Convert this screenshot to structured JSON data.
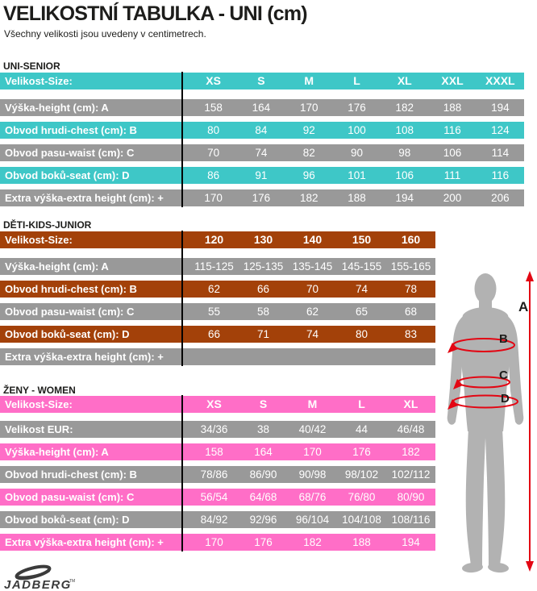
{
  "page": {
    "title": "VELIKOSTNÍ TABULKA - UNI (cm)",
    "subtitle": "Všechny velikosti jsou uvedeny v centimetrech."
  },
  "colors": {
    "senior_accent": "#3EC7C7",
    "kids_accent": "#A34109",
    "women_accent": "#FF6EC7",
    "row_gray": "#999999",
    "divider_black": "#000000",
    "figure_gray": "#B2B2B2",
    "measure_red": "#E30613"
  },
  "tables": [
    {
      "id": "uni-senior",
      "section_label": "UNI-SENIOR",
      "accent": "#3EC7C7",
      "header": {
        "label": "Velikost-Size:",
        "values": [
          "XS",
          "S",
          "M",
          "L",
          "XL",
          "XXL",
          "XXXL"
        ]
      },
      "rows": [
        {
          "label": "Výška-height (cm): A",
          "values": [
            "158",
            "164",
            "170",
            "176",
            "182",
            "188",
            "194"
          ]
        },
        {
          "label": "Obvod hrudi-chest (cm): B",
          "values": [
            "80",
            "84",
            "92",
            "100",
            "108",
            "116",
            "124"
          ]
        },
        {
          "label": "Obvod pasu-waist (cm): C",
          "values": [
            "70",
            "74",
            "82",
            "90",
            "98",
            "106",
            "114"
          ]
        },
        {
          "label": "Obvod boků-seat (cm): D",
          "values": [
            "86",
            "91",
            "96",
            "101",
            "106",
            "111",
            "116"
          ]
        },
        {
          "label": "Extra výška-extra height (cm): +",
          "values": [
            "170",
            "176",
            "182",
            "188",
            "194",
            "200",
            "206"
          ]
        }
      ]
    },
    {
      "id": "deti-kids-junior",
      "section_label": "DĚTI-KIDS-JUNIOR",
      "accent": "#A34109",
      "header": {
        "label": "Velikost-Size:",
        "values": [
          "120",
          "130",
          "140",
          "150",
          "160"
        ]
      },
      "rows": [
        {
          "label": "Výška-height (cm): A",
          "values": [
            "115-125",
            "125-135",
            "135-145",
            "145-155",
            "155-165"
          ]
        },
        {
          "label": "Obvod hrudi-chest (cm): B",
          "values": [
            "62",
            "66",
            "70",
            "74",
            "78"
          ]
        },
        {
          "label": "Obvod pasu-waist (cm): C",
          "values": [
            "55",
            "58",
            "62",
            "65",
            "68"
          ]
        },
        {
          "label": "Obvod boků-seat (cm): D",
          "values": [
            "66",
            "71",
            "74",
            "80",
            "83"
          ]
        },
        {
          "label": "Extra výška-extra height (cm): +",
          "values": [
            "",
            "",
            "",
            "",
            ""
          ]
        }
      ]
    },
    {
      "id": "zeny-women",
      "section_label": "ŽENY - WOMEN",
      "accent": "#FF6EC7",
      "header": {
        "label": "Velikost-Size:",
        "values": [
          "XS",
          "S",
          "M",
          "L",
          "XL"
        ]
      },
      "rows": [
        {
          "label": "Velikost EUR:",
          "values": [
            "34/36",
            "38",
            "40/42",
            "44",
            "46/48"
          ]
        },
        {
          "label": "Výška-height (cm): A",
          "values": [
            "158",
            "164",
            "170",
            "176",
            "182"
          ]
        },
        {
          "label": "Obvod hrudi-chest (cm): B",
          "values": [
            "78/86",
            "86/90",
            "90/98",
            "98/102",
            "102/112"
          ]
        },
        {
          "label": "Obvod pasu-waist (cm): C",
          "values": [
            "56/54",
            "64/68",
            "68/76",
            "76/80",
            "80/90"
          ]
        },
        {
          "label": "Obvod boků-seat (cm): D",
          "values": [
            "84/92",
            "92/96",
            "96/104",
            "104/108",
            "108/116"
          ]
        },
        {
          "label": "Extra výška-extra height (cm): +",
          "values": [
            "170",
            "176",
            "182",
            "188",
            "194"
          ]
        }
      ]
    }
  ],
  "figure": {
    "labels": {
      "a": "A",
      "b": "B",
      "c": "C",
      "d": "D"
    }
  },
  "logo": {
    "brand": "JADBERG",
    "tm": "TM"
  }
}
